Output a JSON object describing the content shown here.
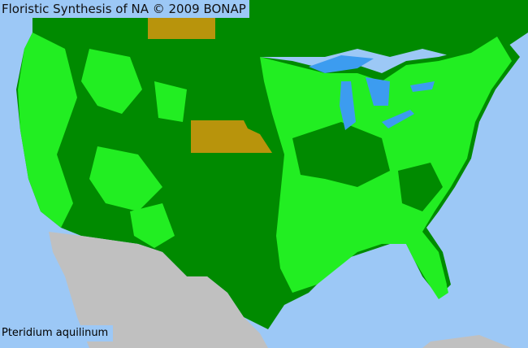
{
  "map": {
    "title": "Floristic Synthesis of NA © 2009 BONAP",
    "species_label": "Pteridium aquilinum",
    "colors": {
      "ocean": "#9cc8f6",
      "lakes": "#3c9cf0",
      "species_present_in_state": "#008a00",
      "county_present": "#22ee22",
      "not_present_noxious_or_absent_state": "#b8940c",
      "outside_range": "#c0c0c0"
    }
  }
}
